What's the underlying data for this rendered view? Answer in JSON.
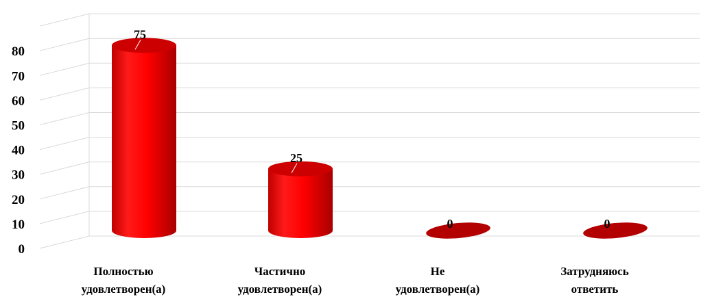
{
  "chart_data": {
    "type": "bar",
    "style": "3d-cylinder",
    "categories": [
      [
        "Полностью",
        "удовлетворен(а)"
      ],
      [
        "Частично",
        "удовлетворен(а)"
      ],
      [
        "Не",
        "удовлетворен(а)"
      ],
      [
        "Затрудняюсь",
        "ответить"
      ]
    ],
    "values": [
      75,
      25,
      0,
      0
    ],
    "data_labels": [
      "75",
      "25",
      "0",
      "0"
    ],
    "ylim": [
      0,
      90
    ],
    "yticks": [
      0,
      10,
      20,
      30,
      40,
      50,
      60,
      70,
      80
    ],
    "grid": true,
    "legend": "none",
    "colors": {
      "bar": "#ff0000",
      "bar_dark": "#b30000",
      "bar_top": "#cc0000",
      "grid": "#d9d9d9"
    }
  }
}
